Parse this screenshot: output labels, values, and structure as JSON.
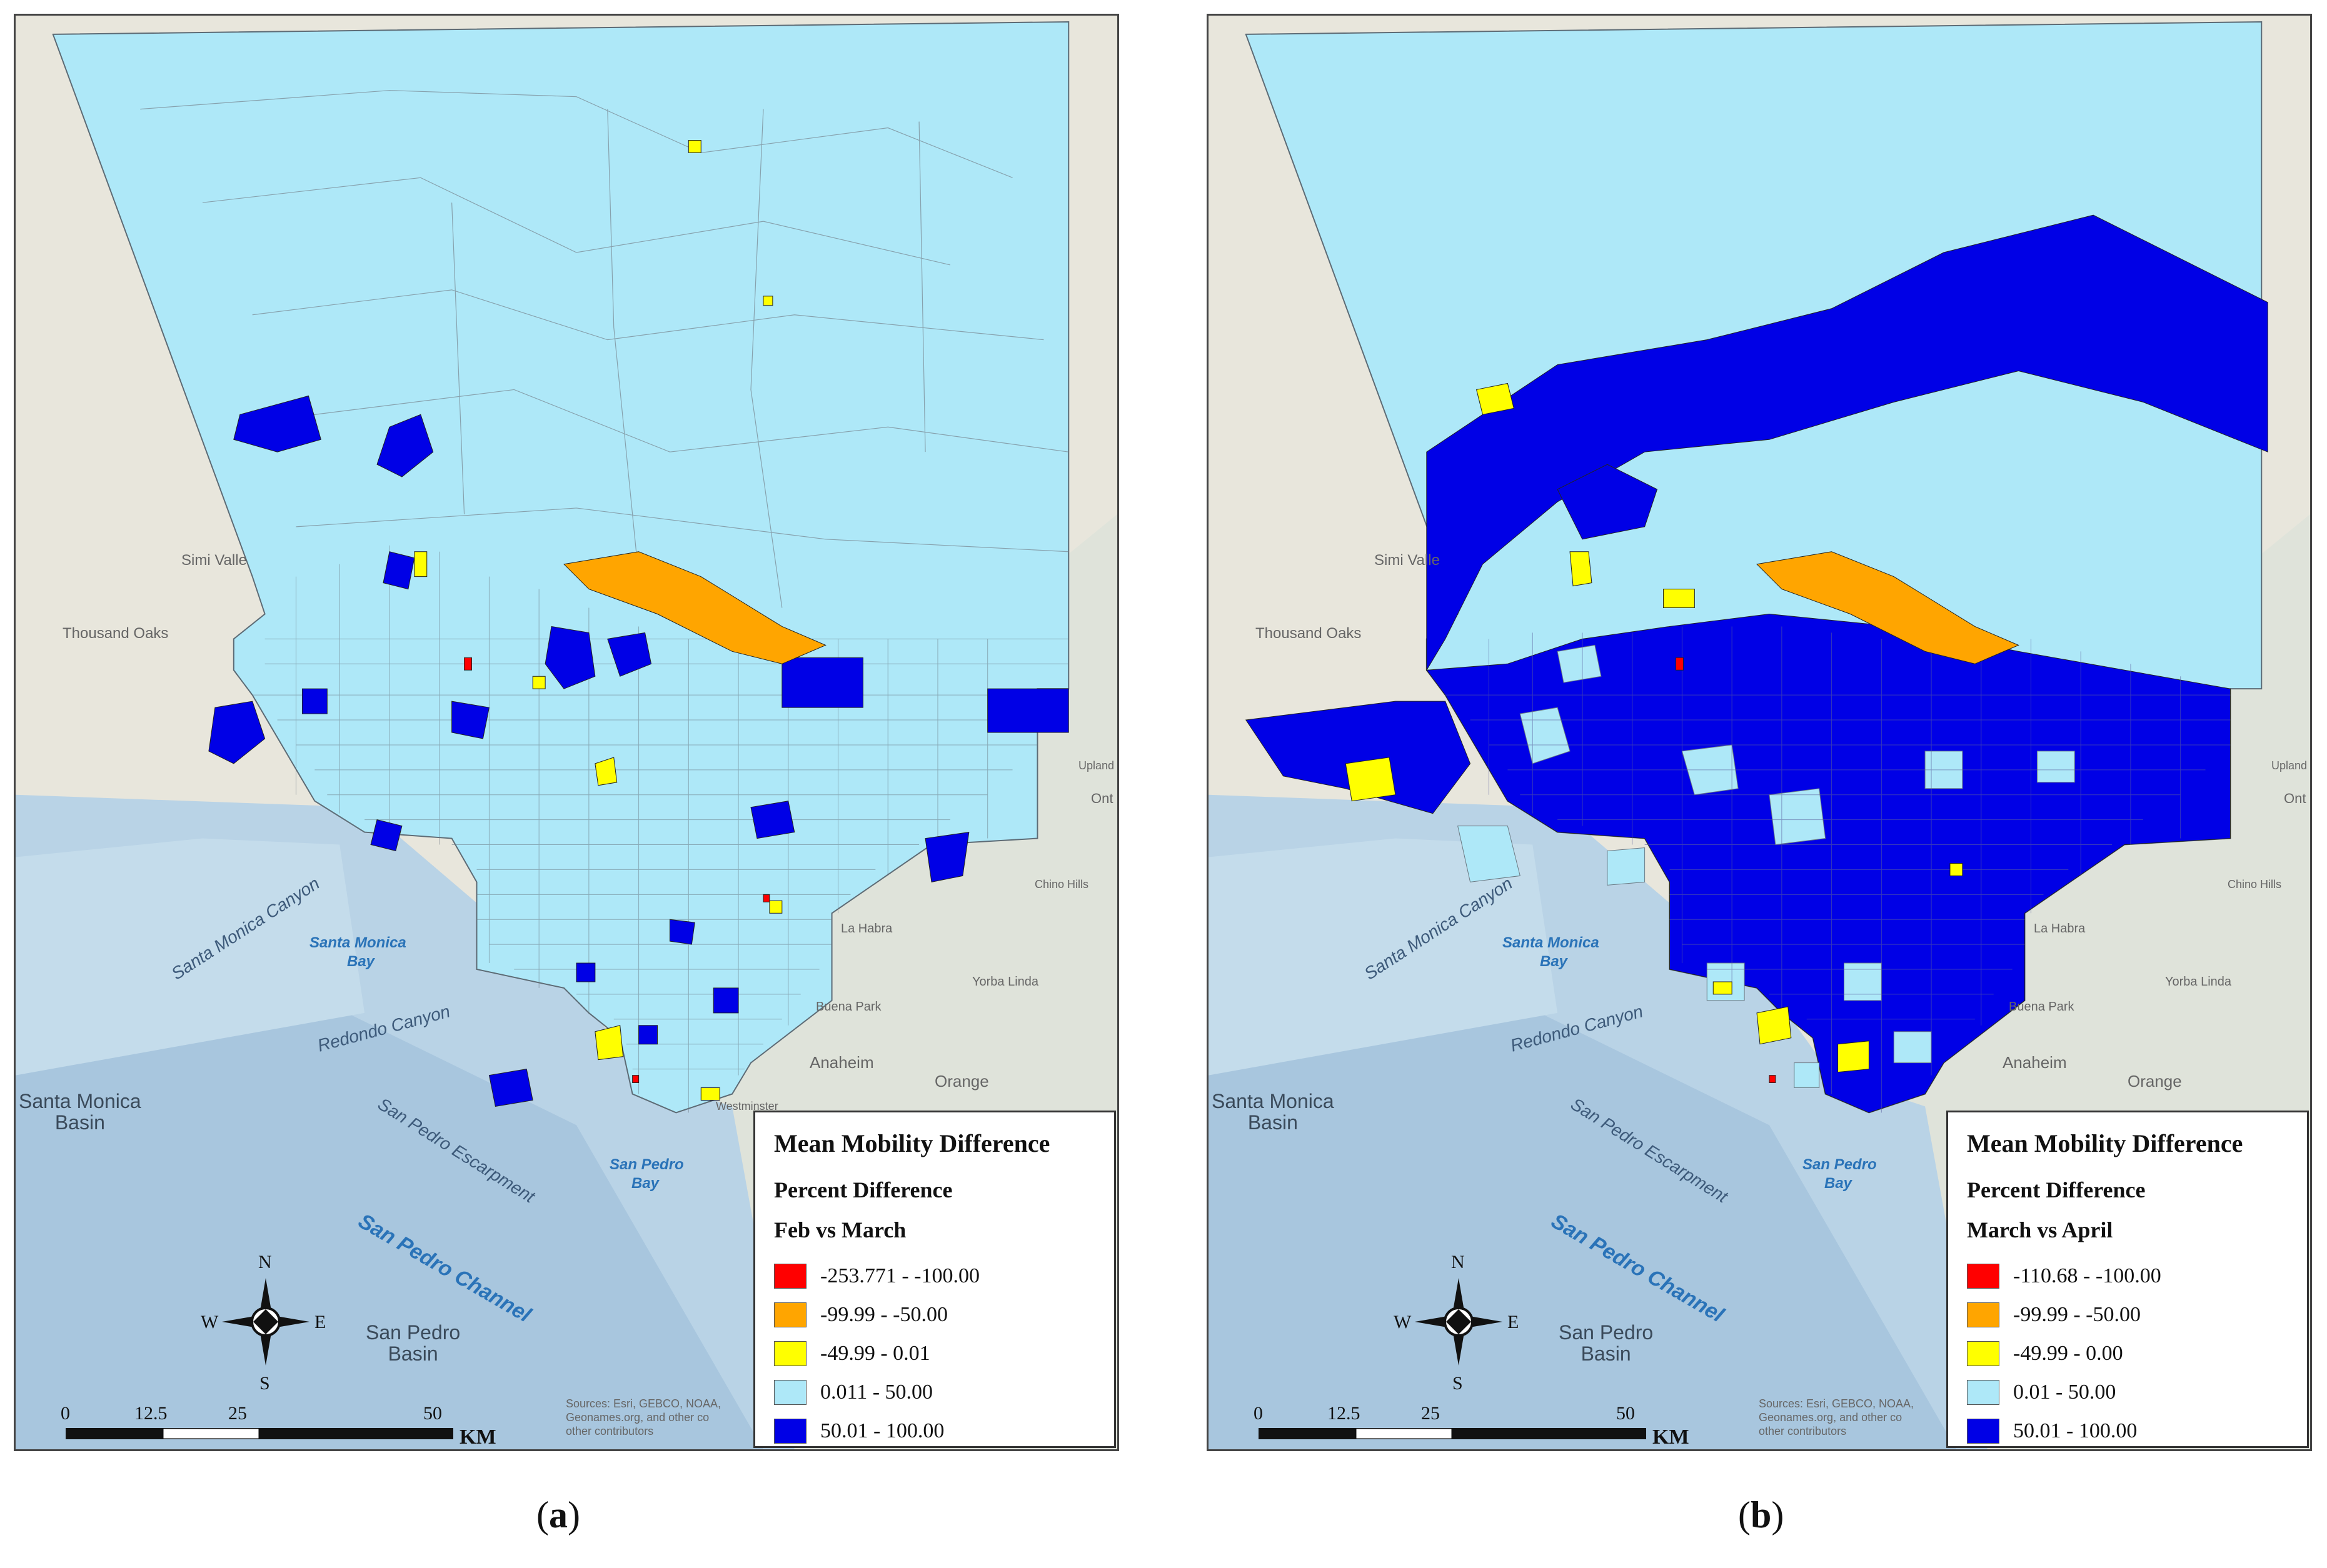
{
  "legend_colors": {
    "red": "#ff0000",
    "orange": "#ffa500",
    "yellow": "#ffff00",
    "light_blue": "#aee8f8",
    "blue": "#0000e6"
  },
  "panels": [
    {
      "legend": {
        "title": "Mean Mobility Difference",
        "subtitle": "Percent Difference",
        "period": "Feb vs March",
        "classes": [
          {
            "label": "-253.771 - -100.00",
            "color": "#ff0000"
          },
          {
            "label": "-99.99 - -50.00",
            "color": "#ffa500"
          },
          {
            "label": "-49.99 - 0.01",
            "color": "#ffff00"
          },
          {
            "label": "0.011 - 50.00",
            "color": "#aee8f8"
          },
          {
            "label": "50.01 - 100.00",
            "color": "#0000e6"
          }
        ]
      },
      "caption_letter": "a"
    },
    {
      "legend": {
        "title": "Mean Mobility Difference",
        "subtitle": "Percent Difference",
        "period": "March vs April",
        "classes": [
          {
            "label": "-110.68 - -100.00",
            "color": "#ff0000"
          },
          {
            "label": "-99.99 - -50.00",
            "color": "#ffa500"
          },
          {
            "label": "-49.99 - 0.00",
            "color": "#ffff00"
          },
          {
            "label": "0.01 - 50.00",
            "color": "#aee8f8"
          },
          {
            "label": "50.01 - 100.00",
            "color": "#0000e6"
          }
        ]
      },
      "caption_letter": "b"
    }
  ],
  "basemap_labels": {
    "simi": "Simi Valle",
    "thousand_oaks": "Thousand Oaks",
    "santa_monica_canyon": "Santa Monica Canyon",
    "santa_monica_bay_1": "Santa Monica",
    "santa_monica_bay_2": "Bay",
    "redondo_canyon": "Redondo Canyon",
    "santa_monica_basin_1": "Santa Monica",
    "santa_monica_basin_2": "Basin",
    "san_pedro_escarpment": "San Pedro Escarpment",
    "san_pedro_bay_1": "San Pedro",
    "san_pedro_bay_2": "Bay",
    "san_pedro_channel": "San Pedro Channel",
    "san_pedro_basin_1": "San Pedro",
    "san_pedro_basin_2": "Basin",
    "anaheim": "Anaheim",
    "orange": "Orange",
    "la_habra": "La Habra",
    "buena_park": "Buena Park",
    "yorba_linda": "Yorba Linda",
    "chino_hills": "Chino Hills",
    "upland": "Upland",
    "ont": "Ont",
    "westminster": "Westminster"
  },
  "north_arrow": {
    "n": "N",
    "s": "S",
    "e": "E",
    "w": "W"
  },
  "scale": {
    "ticks": [
      "0",
      "12.5",
      "25",
      "50"
    ],
    "unit": "KM"
  },
  "sources": {
    "line1": "Sources: Esri, GEBCO, NOAA,",
    "line2": "Geonames.org, and other co",
    "line3": "other contributors"
  }
}
